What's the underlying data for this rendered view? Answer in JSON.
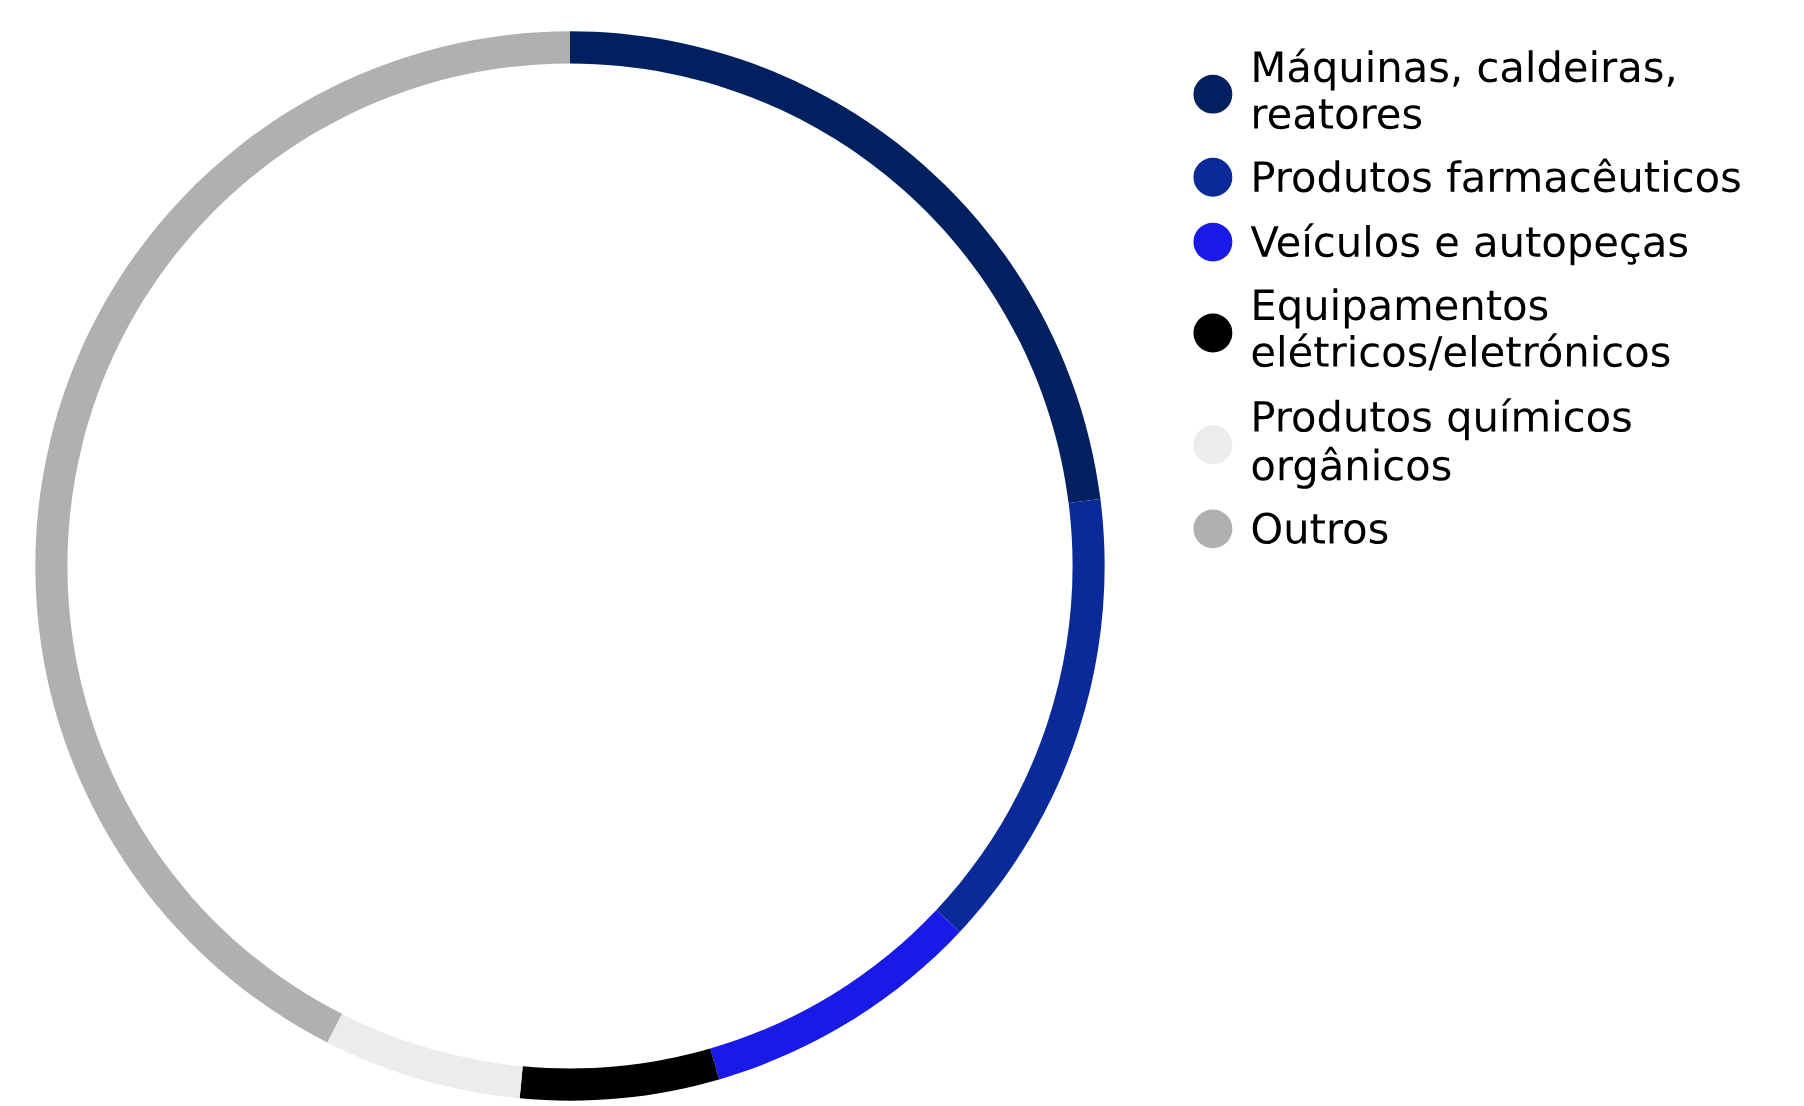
{
  "chart_data": {
    "type": "donut",
    "categories": [
      "Máquinas, caldeiras,\nreatores",
      "Produtos farmacêuticos",
      "Veículos e autopeças",
      "Equipamentos\nelétricos/eletrónicos",
      "Produtos químicos\norgânicos",
      "Outros"
    ],
    "values": [
      23,
      14,
      8.5,
      6,
      6,
      42.5
    ],
    "colors": [
      "#002060",
      "#0a2a9a",
      "#1a1ae8",
      "#000000",
      "#ececec",
      "#b0b0b0"
    ],
    "legend": "right"
  }
}
